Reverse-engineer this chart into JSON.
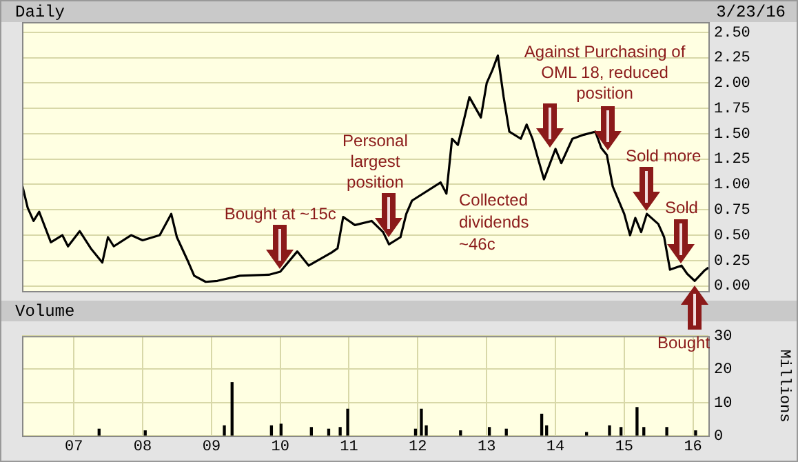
{
  "chart_data": [
    {
      "type": "line",
      "title": "Daily",
      "color": "#000000",
      "grid": true,
      "tick_labels": "y",
      "xlim": [
        "2006-04-01",
        "2016-03-23"
      ],
      "ylim": [
        -0.05,
        2.6
      ],
      "xticks": [
        {
          "value": "2007-01-01",
          "label": null
        },
        {
          "value": "2008-01-01",
          "label": null
        },
        {
          "value": "2009-01-01",
          "label": null
        },
        {
          "value": "2010-01-01",
          "label": null
        },
        {
          "value": "2011-01-01",
          "label": null
        },
        {
          "value": "2012-01-01",
          "label": null
        },
        {
          "value": "2013-01-01",
          "label": null
        },
        {
          "value": "2014-01-01",
          "label": null
        },
        {
          "value": "2015-01-01",
          "label": null
        },
        {
          "value": "2016-01-01",
          "label": null
        }
      ],
      "yticks": [
        {
          "value": 0,
          "label": "0.00"
        },
        {
          "value": 0.25,
          "label": "0.25"
        },
        {
          "value": 0.5,
          "label": "0.50"
        },
        {
          "value": 0.75,
          "label": "0.75"
        },
        {
          "value": 1,
          "label": "1.00"
        },
        {
          "value": 1.25,
          "label": "1.25"
        },
        {
          "value": 1.5,
          "label": "1.50"
        },
        {
          "value": 1.75,
          "label": "1.75"
        },
        {
          "value": 2,
          "label": "2.00"
        },
        {
          "value": 2.25,
          "label": "2.25"
        },
        {
          "value": 2.5,
          "label": "2.50"
        }
      ],
      "x": [
        "2006-04",
        "2006-05",
        "2006-06",
        "2006-07",
        "2006-09",
        "2006-11",
        "2006-12",
        "2007-02",
        "2007-04",
        "2007-06",
        "2007-07",
        "2007-08",
        "2007-11",
        "2008-01",
        "2008-04",
        "2008-06",
        "2008-07",
        "2008-09",
        "2008-10",
        "2008-12",
        "2009-02",
        "2009-06",
        "2009-11",
        "2010-01",
        "2010-04",
        "2010-06",
        "2010-10",
        "2010-11",
        "2010-12",
        "2011-02",
        "2011-05",
        "2011-07",
        "2011-08",
        "2011-10",
        "2011-11",
        "2011-12",
        "2012-05",
        "2012-06",
        "2012-07",
        "2012-08",
        "2012-10",
        "2012-12",
        "2013-01",
        "2013-02",
        "2013-03",
        "2013-04",
        "2013-05",
        "2013-07",
        "2013-08",
        "2013-09",
        "2013-10",
        "2013-11",
        "2014-01",
        "2014-02",
        "2014-04",
        "2014-06",
        "2014-08",
        "2014-09",
        "2014-10",
        "2014-11",
        "2015-01",
        "2015-02",
        "2015-03",
        "2015-04",
        "2015-05",
        "2015-07",
        "2015-08",
        "2015-09",
        "2015-11",
        "2015-12",
        "2016-01-10",
        "2016-02-05",
        "2016-03-01",
        "2016-03-23"
      ],
      "values": [
        1.0,
        0.77,
        0.64,
        0.73,
        0.43,
        0.5,
        0.39,
        0.54,
        0.37,
        0.23,
        0.48,
        0.39,
        0.5,
        0.45,
        0.5,
        0.71,
        0.48,
        0.23,
        0.1,
        0.04,
        0.05,
        0.1,
        0.11,
        0.14,
        0.34,
        0.2,
        0.33,
        0.37,
        0.68,
        0.6,
        0.64,
        0.53,
        0.41,
        0.48,
        0.71,
        0.84,
        1.02,
        0.91,
        1.45,
        1.39,
        1.86,
        1.66,
        2.0,
        2.13,
        2.27,
        1.86,
        1.52,
        1.45,
        1.59,
        1.45,
        1.25,
        1.05,
        1.35,
        1.21,
        1.45,
        1.49,
        1.52,
        1.36,
        1.29,
        0.98,
        0.71,
        0.5,
        0.67,
        0.53,
        0.71,
        0.61,
        0.48,
        0.16,
        0.2,
        0.12,
        0.05,
        0.1,
        0.15,
        0.18
      ],
      "annotations": [
        "3/23/16",
        {
          "text": "Bought at ~15c",
          "x": "2010-01",
          "y": 0.14
        },
        {
          "text": "Personal largest position",
          "x": "2011-08",
          "y": 0.45
        },
        "Collected dividends ~46c",
        {
          "text": "Against Purchasing of OML 18, reduced position",
          "x": "2013-12",
          "y": 1.33
        },
        {
          "text": "Sold more",
          "x": "2015-05",
          "y": 0.71
        },
        {
          "text": "Sold",
          "x": "2015-11",
          "y": 0.2
        },
        {
          "text": "Bought",
          "x": "2016-01-10",
          "y": 0.04
        }
      ]
    },
    {
      "type": "bar",
      "title": "Volume",
      "ylabel": "Millions",
      "color": "#000000",
      "grid": true,
      "xlim": [
        "2006-04-01",
        "2016-03-23"
      ],
      "ylim": [
        0,
        30
      ],
      "yticks": [
        0,
        10,
        20,
        30
      ],
      "xticks": [
        {
          "value": "2007-01-01",
          "label": "07"
        },
        {
          "value": "2008-01-01",
          "label": "08"
        },
        {
          "value": "2009-01-01",
          "label": "09"
        },
        {
          "value": "2010-01-01",
          "label": "10"
        },
        {
          "value": "2011-01-01",
          "label": "11"
        },
        {
          "value": "2012-01-01",
          "label": "12"
        },
        {
          "value": "2013-01-01",
          "label": "13"
        },
        {
          "value": "2014-01-01",
          "label": "14"
        },
        {
          "value": "2015-01-01",
          "label": "15"
        },
        {
          "value": "2016-01-01",
          "label": "16"
        }
      ],
      "x": [
        "2007-05-15",
        "2008-01-15",
        "2009-03-10",
        "2009-04-20",
        "2009-11-15",
        "2010-01-05",
        "2010-06-15",
        "2010-09-15",
        "2010-11-15",
        "2010-12-25",
        "2011-12-20",
        "2012-01-20",
        "2012-02-15",
        "2012-08-15",
        "2013-01-15",
        "2013-04-15",
        "2013-10-20",
        "2013-11-15",
        "2014-06-15",
        "2014-10-15",
        "2014-12-15",
        "2015-03-10",
        "2015-04-15",
        "2015-08-15",
        "2016-01-15"
      ],
      "values": [
        2,
        1.5,
        3,
        16,
        3,
        3.5,
        2.5,
        2,
        2.5,
        8,
        2,
        8,
        3,
        1.5,
        2.5,
        2,
        6.5,
        3,
        1,
        3,
        2.5,
        8.5,
        2.5,
        2.5,
        1.5
      ]
    }
  ]
}
